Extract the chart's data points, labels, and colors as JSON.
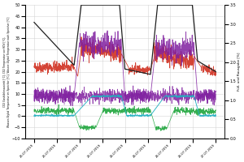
{
  "ylabel_left": "CO2 Gaskühleraustritt [°C], CO2 Temperatur vor HDV [°C],\nWasser-Glykol Temperatur im Speicher [°C], Wasser-Glykol Temperatur nach Speicher [°C]",
  "ylabel_right": "Füll- und Rausgabe [%]",
  "ylim_left": [
    -10,
    50
  ],
  "ylim_right": [
    0,
    3.5
  ],
  "yticks_left": [
    -10,
    -5,
    0,
    5,
    10,
    15,
    20,
    25,
    30,
    35,
    40,
    45,
    50
  ],
  "yticks_right": [
    0,
    0.5,
    1.0,
    1.5,
    2.0,
    2.5,
    3.0,
    3.5
  ],
  "colors": {
    "red": "#d03020",
    "purple": "#8020a0",
    "green": "#10a030",
    "cyan": "#20b0c0",
    "black": "#202020"
  },
  "background": "#ffffff",
  "grid_color": "#cccccc",
  "xtick_labels": [
    "25.07.2019",
    "25.07.2019",
    "25.07.2019",
    "25.07.2019",
    "26.07.2019",
    "26.07.2019",
    "26.07.2019",
    "26.07.2019",
    "27.07.2019"
  ]
}
